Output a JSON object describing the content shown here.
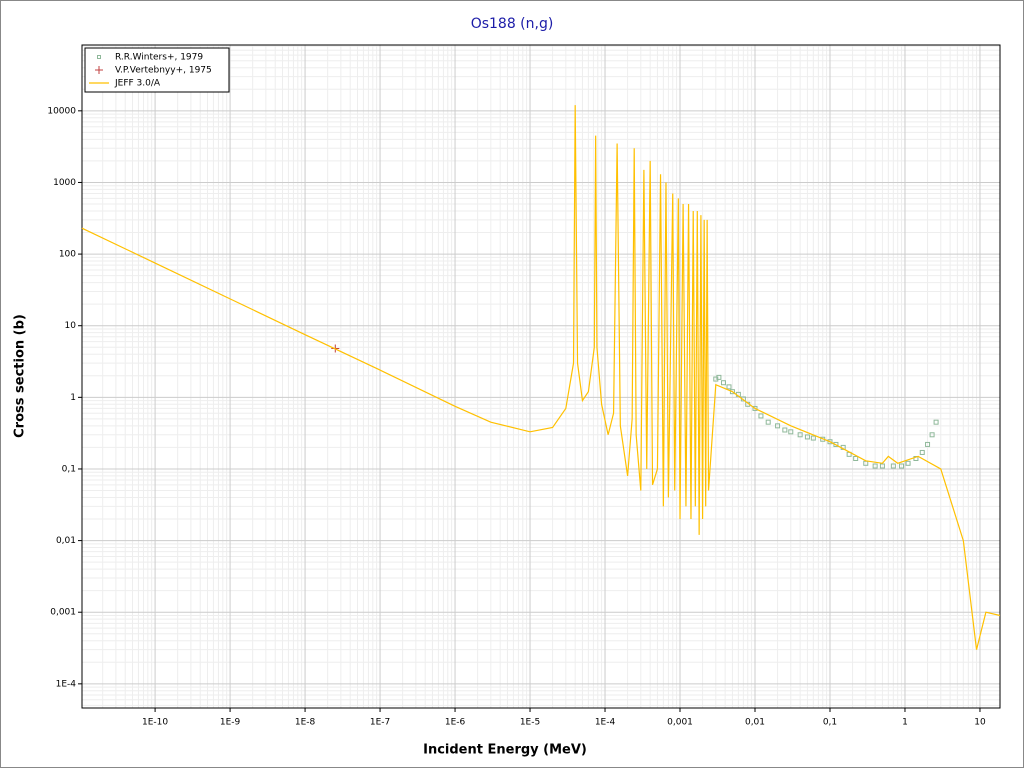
{
  "chart_data": {
    "type": "line",
    "title": "Os188 (n,g)",
    "x_label": "Incident Energy (MeV)",
    "y_label": "Cross section (b)",
    "xscale": "log",
    "yscale": "log",
    "grid": true,
    "legend": "top-left",
    "xlim": [
      1.06e-11,
      18.5
    ],
    "ylim": [
      4.6e-05,
      83000
    ],
    "xticks": [
      {
        "value": 1e-10,
        "label": "1E-10"
      },
      {
        "value": 1e-09,
        "label": "1E-9"
      },
      {
        "value": 1e-08,
        "label": "1E-8"
      },
      {
        "value": 1e-07,
        "label": "1E-7"
      },
      {
        "value": 1e-06,
        "label": "1E-6"
      },
      {
        "value": 1e-05,
        "label": "1E-5"
      },
      {
        "value": 0.0001,
        "label": "1E-4"
      },
      {
        "value": 0.001,
        "label": "0,001"
      },
      {
        "value": 0.01,
        "label": "0,01"
      },
      {
        "value": 0.1,
        "label": "0,1"
      },
      1,
      10
    ],
    "yticks": [
      {
        "value": 0.0001,
        "label": "1E-4"
      },
      {
        "value": 0.001,
        "label": "0,001"
      },
      {
        "value": 0.01,
        "label": "0,01"
      },
      {
        "value": 0.1,
        "label": "0,1"
      },
      1,
      10,
      100,
      1000,
      10000
    ],
    "series": [
      {
        "name": "R.R.Winters+, 1979",
        "type": "scatter",
        "marker": "square",
        "color": "#8fb89a",
        "x": [
          0.003,
          0.0033,
          0.0038,
          0.0045,
          0.005,
          0.006,
          0.007,
          0.008,
          0.01,
          0.012,
          0.015,
          0.02,
          0.025,
          0.03,
          0.04,
          0.05,
          0.06,
          0.08,
          0.1,
          0.12,
          0.15,
          0.18,
          0.22,
          0.3,
          0.4,
          0.5,
          0.7,
          0.9,
          1.1,
          1.4,
          1.7,
          2,
          2.3,
          2.6
        ],
        "values": [
          1.8,
          1.9,
          1.6,
          1.4,
          1.2,
          1.1,
          0.95,
          0.8,
          0.7,
          0.55,
          0.45,
          0.4,
          0.35,
          0.33,
          0.3,
          0.28,
          0.27,
          0.26,
          0.24,
          0.22,
          0.2,
          0.16,
          0.14,
          0.12,
          0.11,
          0.11,
          0.11,
          0.11,
          0.12,
          0.14,
          0.17,
          0.22,
          0.3,
          0.45
        ]
      },
      {
        "name": "V.P.Vertebnyy+, 1975",
        "type": "scatter",
        "marker": "plus",
        "color": "#c04040",
        "x": [
          2.53e-08
        ],
        "values": [
          4.8
        ]
      },
      {
        "name": "JEFF 3.0/A",
        "type": "line",
        "color": "#ffc000",
        "x": [
          1.06e-11,
          1e-10,
          1e-09,
          1e-08,
          1e-07,
          1e-06,
          3e-06,
          1e-05,
          2e-05,
          3e-05,
          3.8e-05,
          4e-05,
          4.3e-05,
          5e-05,
          6e-05,
          7.2e-05,
          7.5e-05,
          7.8e-05,
          9e-05,
          0.00011,
          0.00013,
          0.000145,
          0.00016,
          0.0002,
          0.00023,
          0.000245,
          0.00026,
          0.0003,
          0.00033,
          0.00036,
          0.0004,
          0.00043,
          0.0005,
          0.00055,
          0.0006,
          0.00065,
          0.0007,
          0.0008,
          0.00085,
          0.00095,
          0.001,
          0.0011,
          0.0012,
          0.0013,
          0.0014,
          0.0015,
          0.0016,
          0.0017,
          0.0018,
          0.0019,
          0.002,
          0.0021,
          0.0022,
          0.0023,
          0.0024,
          0.003,
          0.005,
          0.01,
          0.03,
          0.1,
          0.3,
          0.5,
          0.6,
          0.8,
          1.5,
          3,
          6,
          9,
          12,
          18.5
        ],
        "values": [
          230,
          75,
          23.7,
          7.5,
          2.4,
          0.75,
          0.45,
          0.33,
          0.38,
          0.7,
          3,
          12000,
          3,
          0.9,
          1.2,
          5,
          4500,
          5,
          0.8,
          0.3,
          0.6,
          3500,
          0.4,
          0.08,
          0.5,
          3000,
          0.3,
          0.05,
          1500,
          0.1,
          2000,
          0.06,
          0.1,
          1300,
          0.03,
          1000,
          0.04,
          700,
          0.05,
          600,
          0.02,
          500,
          0.03,
          500,
          0.02,
          400,
          0.03,
          400,
          0.012,
          350,
          0.02,
          300,
          0.03,
          300,
          0.05,
          1.5,
          1.2,
          0.7,
          0.4,
          0.24,
          0.13,
          0.12,
          0.15,
          0.12,
          0.15,
          0.1,
          0.01,
          0.0003,
          0.001,
          0.0009
        ]
      }
    ]
  }
}
